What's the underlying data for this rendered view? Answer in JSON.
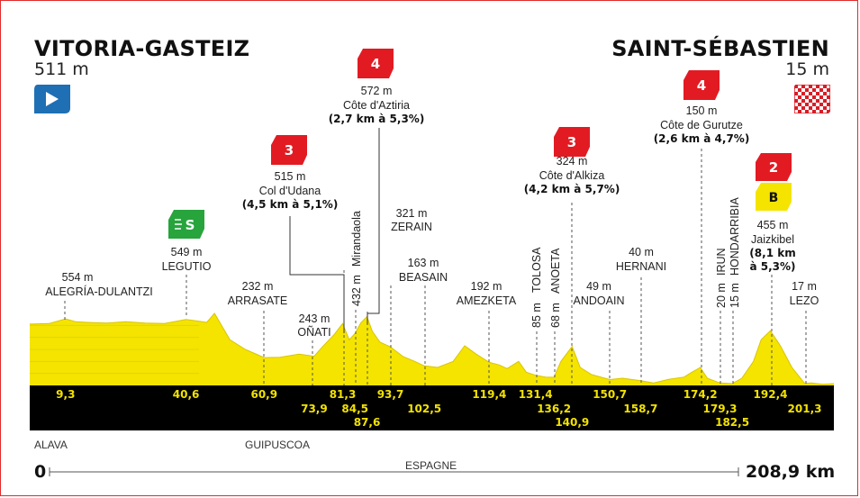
{
  "start": {
    "city": "VITORIA-GASTEIZ",
    "altitude": "511 m",
    "flag_icon": "start-flag-icon"
  },
  "finish": {
    "city": "SAINT-SÉBASTIEN",
    "altitude": "15 m",
    "flag_icon": "checkered-flag-icon"
  },
  "regions": [
    "ALAVA",
    "GUIPUSCOA"
  ],
  "country": "ESPAGNE",
  "distance": {
    "start": "0",
    "end": "208,9 km"
  },
  "colors": {
    "profile": "#f4e400",
    "band": "#000000",
    "km_text": "#f2e200",
    "climb_badge": "#e21b23",
    "sprint_badge": "#27a43c",
    "bonus_badge": "#f4e400"
  },
  "climbs": [
    {
      "category": "3",
      "altitude": "515 m",
      "name": "Col d'Udana",
      "detail": "(4,5 km à 5,1%)"
    },
    {
      "category": "4",
      "altitude": "572 m",
      "name": "Côte d'Aztiria",
      "detail": "(2,7 km à 5,3%)"
    },
    {
      "category": "3",
      "altitude": "324 m",
      "name": "Côte d'Alkiza",
      "detail": "(4,2 km à 5,7%)"
    },
    {
      "category": "4",
      "altitude": "150 m",
      "name": "Côte de Gurutze",
      "detail": "(2,6 km à 4,7%)"
    },
    {
      "category": "2",
      "bonus": "B",
      "altitude": "455 m",
      "name": "Jaizkibel",
      "detail_lines": [
        "(8,1 km",
        "à 5,3%)"
      ]
    }
  ],
  "sprint": {
    "symbol": "S",
    "altitude": "549 m",
    "name": "LEGUTIO"
  },
  "chart_data": {
    "type": "area",
    "title": "",
    "xlabel": "",
    "ylabel": "",
    "xlim": [
      0,
      208.9
    ],
    "x_unit": "km",
    "y_unit": "m",
    "profile_x": [
      0,
      5,
      9.3,
      12,
      15,
      20,
      25,
      30,
      35,
      40.6,
      44,
      46,
      48,
      52,
      56,
      60.9,
      65,
      70,
      73.9,
      76,
      79,
      81.3,
      83,
      84.5,
      86,
      87.6,
      89,
      91,
      93.7,
      97,
      100,
      102.5,
      106,
      110,
      113,
      116,
      119.4,
      122,
      124,
      127,
      129,
      131.4,
      134,
      136.2,
      138,
      140.9,
      143,
      146,
      150.7,
      154,
      158.7,
      162,
      166,
      170,
      172,
      174.2,
      176,
      179.3,
      182.5,
      185,
      188,
      190,
      192.4,
      195,
      198,
      201.3,
      203,
      206,
      208.9
    ],
    "profile_y": [
      511,
      515,
      554,
      530,
      525,
      520,
      530,
      520,
      515,
      549,
      535,
      525,
      600,
      380,
      300,
      232,
      235,
      260,
      243,
      320,
      420,
      515,
      380,
      432,
      520,
      572,
      450,
      360,
      321,
      240,
      200,
      163,
      150,
      200,
      330,
      260,
      192,
      170,
      140,
      200,
      110,
      85,
      70,
      68,
      200,
      324,
      150,
      90,
      49,
      60,
      40,
      20,
      50,
      70,
      110,
      150,
      60,
      20,
      15,
      60,
      200,
      380,
      455,
      330,
      150,
      17,
      20,
      10,
      15
    ],
    "points": [
      {
        "km": "9,3",
        "altitude": "554 m",
        "name": "ALEGRÍA-DULANTZI"
      },
      {
        "km": "40,6",
        "altitude": "549 m",
        "name": "LEGUTIO"
      },
      {
        "km": "60,9",
        "altitude": "232 m",
        "name": "ARRASATE"
      },
      {
        "km": "73,9",
        "altitude": "243 m",
        "name": "OÑATI"
      },
      {
        "km": "81,3",
        "altitude": "515 m",
        "name": "Col d'Udana"
      },
      {
        "km": "84,5",
        "altitude": "432 m",
        "name": "Mirandaola"
      },
      {
        "km": "87,6",
        "altitude": "572 m",
        "name": "Côte d'Aztiria"
      },
      {
        "km": "93,7",
        "altitude": "321 m",
        "name": "ZERAIN"
      },
      {
        "km": "102,5",
        "altitude": "163 m",
        "name": "BEASAIN"
      },
      {
        "km": "119,4",
        "altitude": "192 m",
        "name": "AMEZKETA"
      },
      {
        "km": "131,4",
        "altitude": "85 m",
        "name": "TOLOSA"
      },
      {
        "km": "136,2",
        "altitude": "68 m",
        "name": "ANOETA"
      },
      {
        "km": "140,9",
        "altitude": "324 m",
        "name": "Côte d'Alkiza"
      },
      {
        "km": "150,7",
        "altitude": "49 m",
        "name": "ANDOAIN"
      },
      {
        "km": "158,7",
        "altitude": "40 m",
        "name": "HERNANI"
      },
      {
        "km": "174,2",
        "altitude": "150 m",
        "name": "Côte de Gurutze"
      },
      {
        "km": "179,3",
        "altitude": "20 m",
        "name": "IRUN"
      },
      {
        "km": "182,5",
        "altitude": "15 m",
        "name": "HONDARRIBIA"
      },
      {
        "km": "192,4",
        "altitude": "455 m",
        "name": "Jaizkibel"
      },
      {
        "km": "201,3",
        "altitude": "17 m",
        "name": "LEZO"
      }
    ]
  }
}
